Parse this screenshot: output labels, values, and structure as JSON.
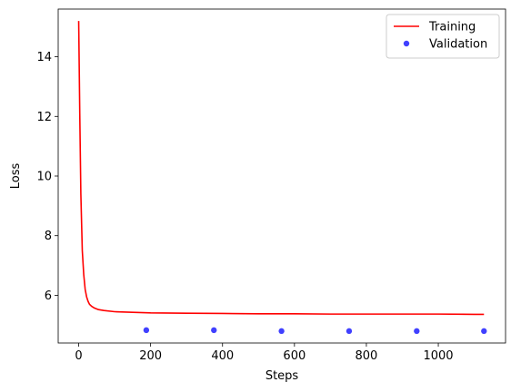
{
  "chart_data": {
    "type": "line",
    "title": "",
    "xlabel": "Steps",
    "ylabel": "Loss",
    "xlim": [
      -57,
      1187
    ],
    "ylim": [
      4.4,
      15.6
    ],
    "xticks": [
      0,
      200,
      400,
      600,
      800,
      1000
    ],
    "yticks": [
      6,
      8,
      10,
      12,
      14
    ],
    "grid": false,
    "legend_position": "top-right",
    "series": [
      {
        "name": "Training",
        "kind": "line",
        "color": "#ff0000",
        "x": [
          0,
          3,
          6,
          10,
          14,
          18,
          22,
          26,
          30,
          36,
          44,
          55,
          70,
          100,
          150,
          200,
          300,
          400,
          500,
          600,
          700,
          800,
          900,
          1000,
          1100,
          1127
        ],
        "y": [
          15.2,
          12.1,
          9.4,
          7.5,
          6.7,
          6.2,
          5.95,
          5.8,
          5.7,
          5.63,
          5.57,
          5.52,
          5.49,
          5.45,
          5.43,
          5.41,
          5.4,
          5.39,
          5.38,
          5.38,
          5.37,
          5.37,
          5.37,
          5.37,
          5.36,
          5.36
        ]
      },
      {
        "name": "Validation",
        "kind": "scatter",
        "color": "#0000ff",
        "x": [
          188,
          376,
          564,
          752,
          940,
          1127
        ],
        "y": [
          4.83,
          4.83,
          4.8,
          4.8,
          4.8,
          4.8
        ]
      }
    ]
  }
}
